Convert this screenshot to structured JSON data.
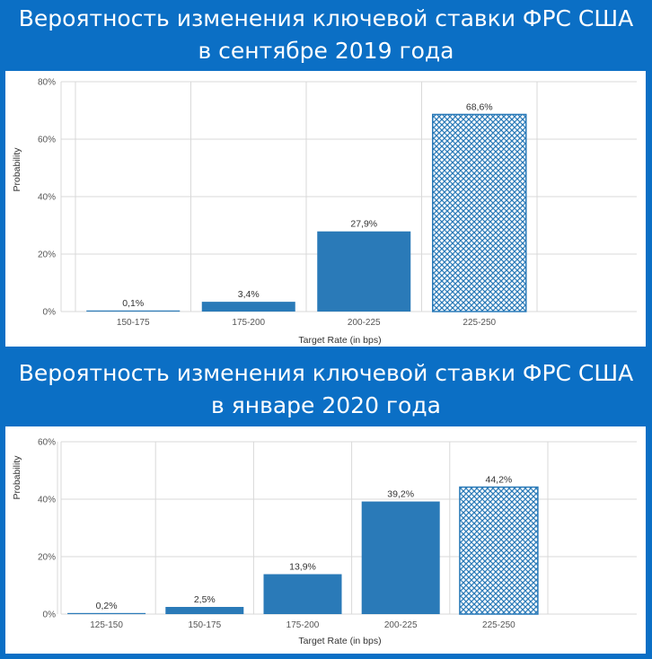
{
  "colors": {
    "background": "#0b6fc5",
    "bar": "#2a7ab8",
    "panel": "#ffffff",
    "grid": "#d9d9d9"
  },
  "banners": [
    {
      "line1": "Вероятность изменения ключевой ставки ФРС США",
      "line2": "в сентябре 2019 года"
    },
    {
      "line1": "Вероятность изменения ключевой ставки ФРС США",
      "line2": "в январе 2020 года"
    }
  ],
  "chart_data": [
    {
      "type": "bar",
      "categories": [
        "150-175",
        "175-200",
        "200-225",
        "225-250"
      ],
      "values": [
        0.1,
        3.4,
        27.9,
        68.6
      ],
      "value_labels": [
        "0,1%",
        "3,4%",
        "27,9%",
        "68,6%"
      ],
      "highlighted": "225-250",
      "xlabel": "Target Rate (in bps)",
      "ylabel": "Probability",
      "ylim": [
        0,
        80
      ],
      "yticks": [
        "0%",
        "20%",
        "40%",
        "60%",
        "80%"
      ],
      "grid": true
    },
    {
      "type": "bar",
      "categories": [
        "125-150",
        "150-175",
        "175-200",
        "200-225",
        "225-250"
      ],
      "values": [
        0.2,
        2.5,
        13.9,
        39.2,
        44.2
      ],
      "value_labels": [
        "0,2%",
        "2,5%",
        "13,9%",
        "39,2%",
        "44,2%"
      ],
      "highlighted": "225-250",
      "xlabel": "Target Rate (in bps)",
      "ylabel": "Probability",
      "ylim": [
        0,
        60
      ],
      "yticks": [
        "0%",
        "20%",
        "40%",
        "60%"
      ],
      "grid": true
    }
  ]
}
